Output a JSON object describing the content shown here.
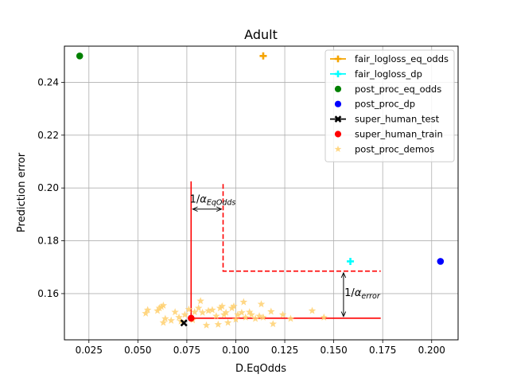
{
  "chart_data": {
    "type": "scatter",
    "title": "Adult",
    "xlabel": "D.EqOdds",
    "ylabel": "Prediction error",
    "xlim": [
      0.0125,
      0.2135
    ],
    "ylim": [
      0.1425,
      0.2537
    ],
    "xticks": [
      0.025,
      0.05,
      0.075,
      0.1,
      0.125,
      0.15,
      0.175,
      0.2
    ],
    "xtick_labels": [
      "0.025",
      "0.050",
      "0.075",
      "0.100",
      "0.125",
      "0.150",
      "0.175",
      "0.200"
    ],
    "yticks": [
      0.16,
      0.18,
      0.2,
      0.22,
      0.24
    ],
    "ytick_labels": [
      "0.16",
      "0.18",
      "0.20",
      "0.22",
      "0.24"
    ],
    "grid": true,
    "legend_position": "top-right",
    "series": [
      {
        "name": "fair_logloss_eq_odds",
        "marker": "plus",
        "color": "#f5a400",
        "line": true,
        "points": [
          [
            0.114,
            0.25
          ]
        ]
      },
      {
        "name": "fair_logloss_dp",
        "marker": "plus",
        "color": "#00ffff",
        "line": true,
        "points": [
          [
            0.1585,
            0.1722
          ]
        ]
      },
      {
        "name": "post_proc_eq_odds",
        "marker": "circle",
        "color": "#008000",
        "line": false,
        "points": [
          [
            0.0203,
            0.25
          ]
        ]
      },
      {
        "name": "post_proc_dp",
        "marker": "circle",
        "color": "#0000ff",
        "line": false,
        "points": [
          [
            0.2045,
            0.1722
          ]
        ]
      },
      {
        "name": "super_human_test",
        "marker": "x",
        "color": "#000000",
        "line": true,
        "points": [
          [
            0.0735,
            0.1489
          ]
        ]
      },
      {
        "name": "super_human_train",
        "marker": "circle",
        "color": "#ff0000",
        "line": false,
        "points": [
          [
            0.0772,
            0.1507
          ]
        ]
      },
      {
        "name": "post_proc_demos",
        "marker": "star",
        "color": "#ffd070",
        "line": false,
        "points": [
          [
            0.054,
            0.1525
          ],
          [
            0.055,
            0.1538
          ],
          [
            0.06,
            0.1535
          ],
          [
            0.061,
            0.1545
          ],
          [
            0.062,
            0.155
          ],
          [
            0.063,
            0.1555
          ],
          [
            0.064,
            0.1505
          ],
          [
            0.063,
            0.149
          ],
          [
            0.067,
            0.1498
          ],
          [
            0.069,
            0.153
          ],
          [
            0.071,
            0.151
          ],
          [
            0.072,
            0.1495
          ],
          [
            0.074,
            0.152
          ],
          [
            0.076,
            0.154
          ],
          [
            0.078,
            0.15
          ],
          [
            0.079,
            0.153
          ],
          [
            0.081,
            0.1545
          ],
          [
            0.082,
            0.1572
          ],
          [
            0.083,
            0.1528
          ],
          [
            0.085,
            0.148
          ],
          [
            0.086,
            0.1535
          ],
          [
            0.088,
            0.1538
          ],
          [
            0.09,
            0.1515
          ],
          [
            0.091,
            0.1483
          ],
          [
            0.092,
            0.1545
          ],
          [
            0.093,
            0.1552
          ],
          [
            0.094,
            0.152
          ],
          [
            0.095,
            0.1528
          ],
          [
            0.096,
            0.149
          ],
          [
            0.098,
            0.1545
          ],
          [
            0.099,
            0.1552
          ],
          [
            0.1,
            0.1502
          ],
          [
            0.101,
            0.152
          ],
          [
            0.103,
            0.1528
          ],
          [
            0.104,
            0.1568
          ],
          [
            0.105,
            0.151
          ],
          [
            0.107,
            0.153
          ],
          [
            0.108,
            0.152
          ],
          [
            0.11,
            0.1505
          ],
          [
            0.112,
            0.1515
          ],
          [
            0.113,
            0.156
          ],
          [
            0.114,
            0.151
          ],
          [
            0.118,
            0.1532
          ],
          [
            0.119,
            0.1485
          ],
          [
            0.124,
            0.152
          ],
          [
            0.128,
            0.1505
          ],
          [
            0.139,
            0.1535
          ],
          [
            0.145,
            0.151
          ]
        ]
      }
    ],
    "guides": {
      "solid_color": "#ff0000",
      "solid_path": [
        [
          0.0772,
          0.2025
        ],
        [
          0.0772,
          0.1507
        ],
        [
          0.174,
          0.1507
        ]
      ],
      "dashed_path": [
        [
          0.0935,
          0.2015
        ],
        [
          0.0935,
          0.1685
        ],
        [
          0.174,
          0.1685
        ]
      ],
      "alpha_eqodds_arrow": {
        "x1": 0.0772,
        "x2": 0.0935,
        "y": 0.192
      },
      "alpha_error_arrow": {
        "x": 0.155,
        "y1": 0.1507,
        "y2": 0.1685
      }
    },
    "annotations": [
      {
        "name": "alpha-eqodds-label",
        "prefix": "1/",
        "symbol": "α",
        "subscript": "EqOdds",
        "x": 0.0765,
        "y": 0.1945
      },
      {
        "name": "alpha-error-label",
        "prefix": "1/",
        "symbol": "α",
        "subscript": "error",
        "x": 0.1555,
        "y": 0.159
      }
    ]
  }
}
